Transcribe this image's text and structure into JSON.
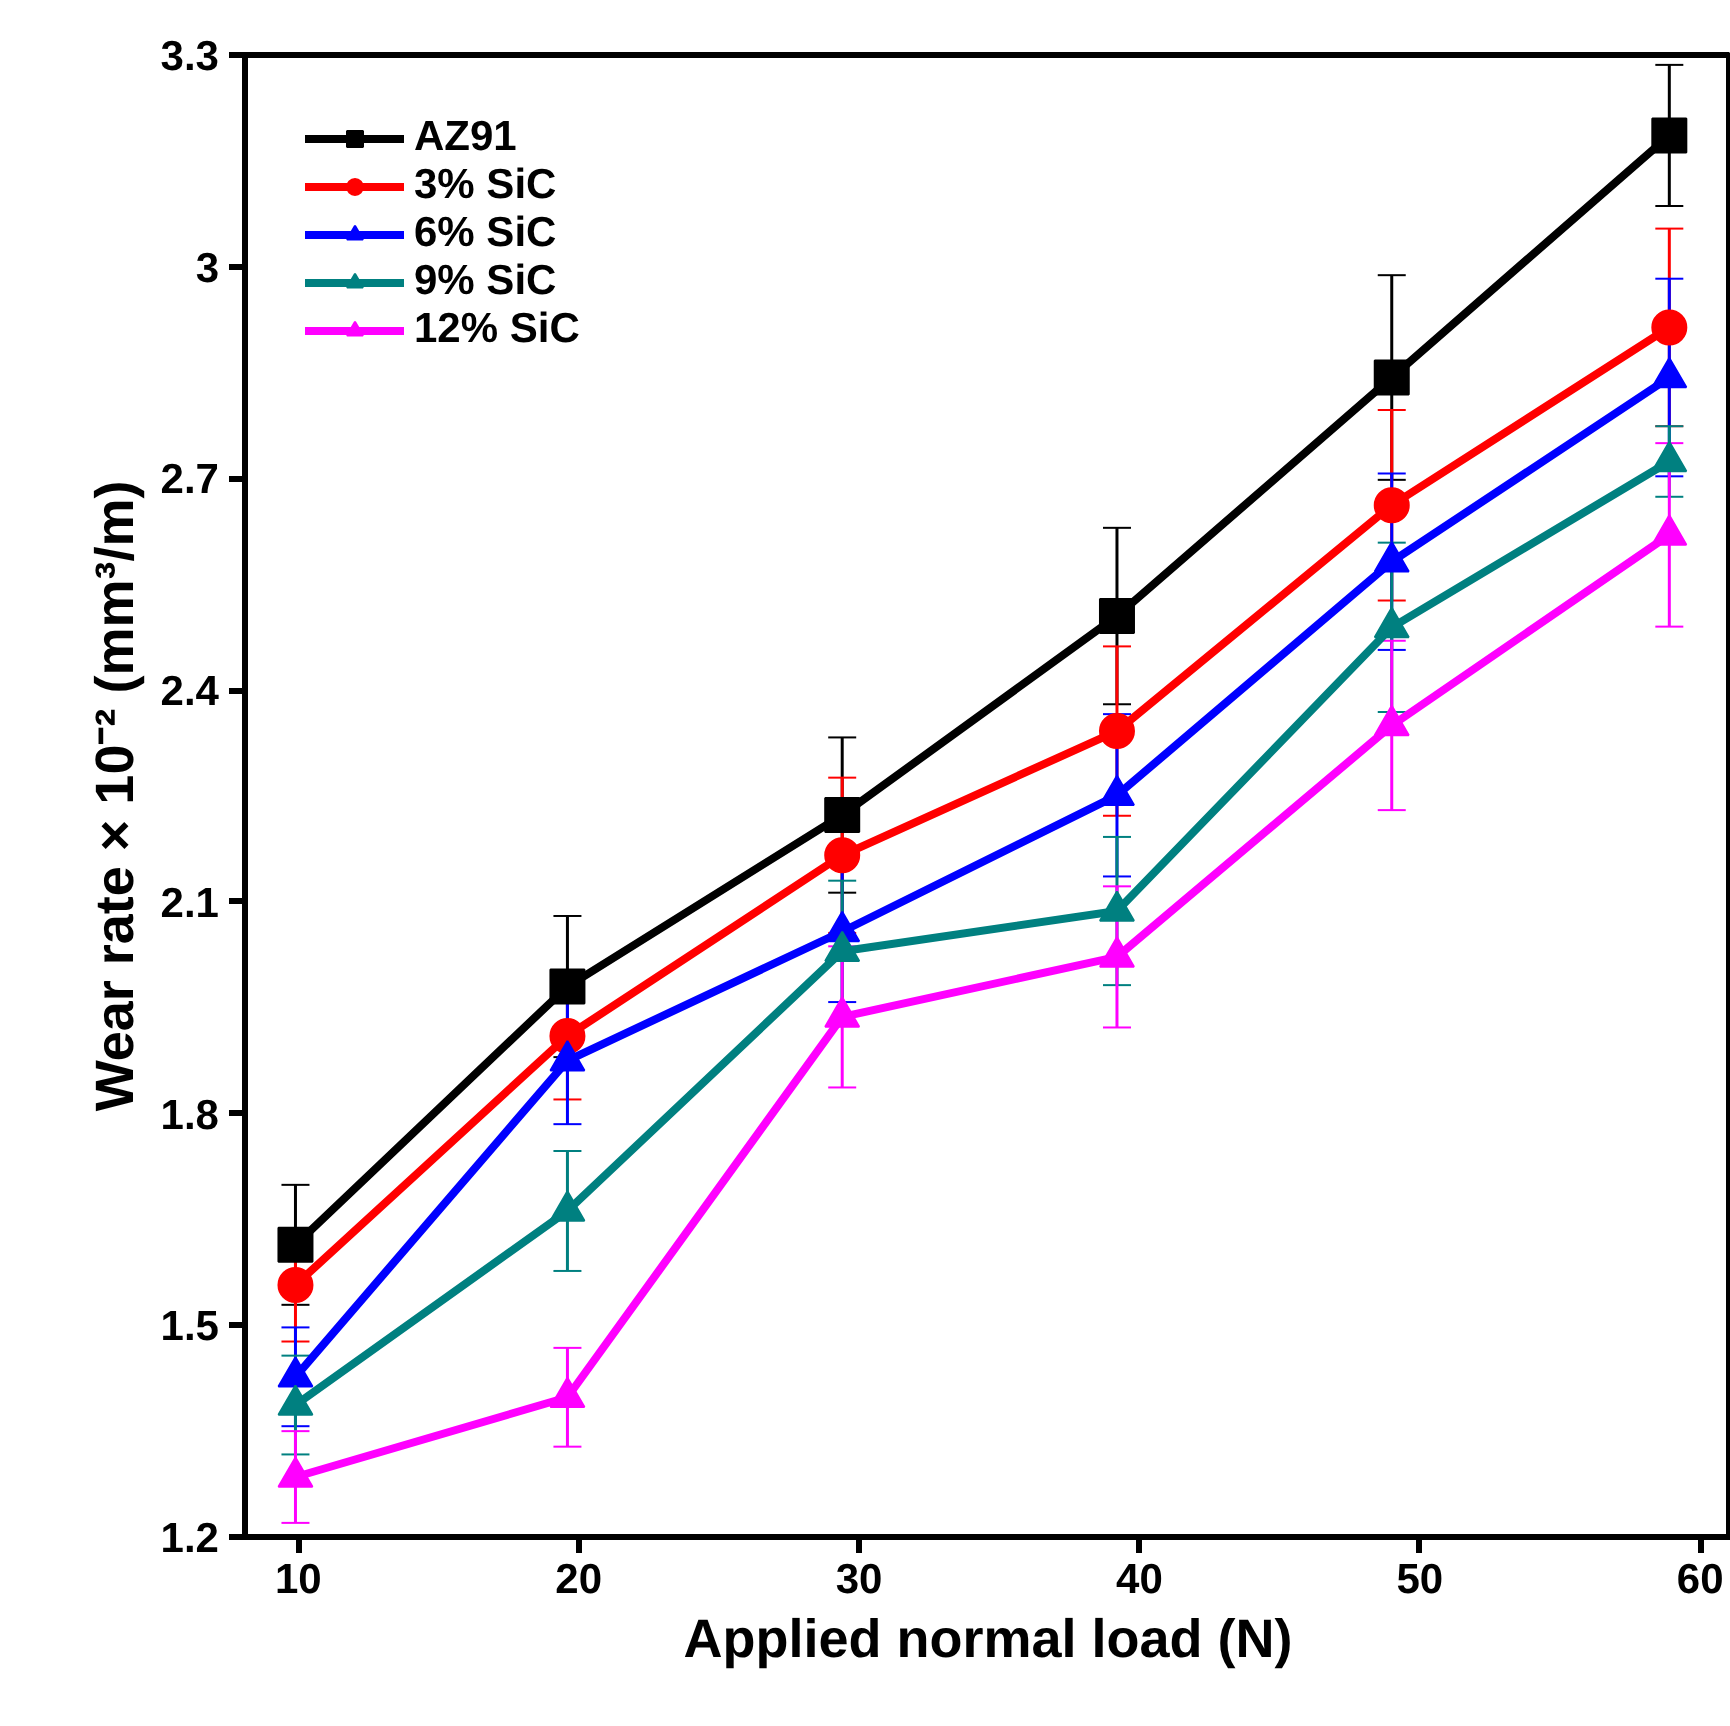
{
  "chart_data": {
    "type": "line",
    "xlabel": "Applied normal load (N)",
    "ylabel": "Wear rate × 10⁻² (mm³/m)",
    "x": [
      9.9,
      19.6,
      29.4,
      39.2,
      49.0,
      58.9
    ],
    "xlim": [
      8.1,
      61.1
    ],
    "xticks": [
      10,
      20,
      30,
      40,
      50,
      60
    ],
    "ylim": [
      1.2,
      3.3
    ],
    "yticks": [
      1.2,
      1.5,
      1.8,
      2.1,
      2.4,
      2.7,
      3,
      3.3
    ],
    "grid": false,
    "legend": "top left",
    "line_style": "solid",
    "series": [
      {
        "name": "AZ91",
        "color": "#000000",
        "marker": "square",
        "values": [
          1.614,
          1.98,
          2.223,
          2.505,
          2.843,
          3.186
        ],
        "errors": [
          0.085,
          0.1,
          0.11,
          0.125,
          0.145,
          0.1
        ]
      },
      {
        "name": "3% SiC",
        "color": "#ff0000",
        "marker": "circle",
        "values": [
          1.557,
          1.91,
          2.166,
          2.342,
          2.662,
          2.914
        ],
        "errors": [
          0.08,
          0.09,
          0.11,
          0.12,
          0.135,
          0.14
        ]
      },
      {
        "name": "6% SiC",
        "color": "#0000ff",
        "marker": "triangle",
        "values": [
          1.427,
          1.875,
          2.058,
          2.251,
          2.582,
          2.843
        ],
        "errors": [
          0.07,
          0.09,
          0.1,
          0.115,
          0.125,
          0.14
        ]
      },
      {
        "name": "9% SiC",
        "color": "#008080",
        "marker": "triangle",
        "values": [
          1.387,
          1.662,
          2.03,
          2.087,
          2.489,
          2.724
        ],
        "errors": [
          0.07,
          0.085,
          0.1,
          0.105,
          0.12,
          0.05
        ]
      },
      {
        "name": "12% SiC",
        "color": "#ff00ff",
        "marker": "triangle",
        "values": [
          1.285,
          1.398,
          1.937,
          2.022,
          2.35,
          2.62
        ],
        "errors": [
          0.065,
          0.07,
          0.1,
          0.1,
          0.12,
          0.13
        ]
      }
    ]
  }
}
